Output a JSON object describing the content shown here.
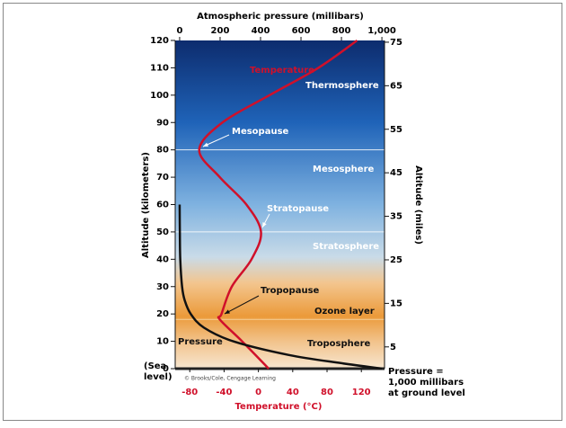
{
  "chart_data": {
    "type": "line",
    "title": "Atmospheric pressure (millibars)",
    "y_label": "Altitude (kilometers)",
    "y2_label": "Altitude (miles)",
    "x_label": "Temperature (°C)",
    "ylim": [
      0,
      120
    ],
    "yticks": [
      0,
      10,
      20,
      30,
      40,
      50,
      60,
      70,
      80,
      90,
      100,
      110,
      120
    ],
    "y2lim": [
      0,
      75.4
    ],
    "y2ticks": [
      5,
      15,
      25,
      35,
      45,
      55,
      65,
      75
    ],
    "xlim": [
      -97,
      147
    ],
    "xticks": [
      -80,
      -40,
      0,
      40,
      80,
      120
    ],
    "x2lim": [
      -22,
      1013
    ],
    "x2ticks": [
      0,
      200,
      400,
      600,
      800,
      {
        "value": 1000,
        "label": "1,000"
      }
    ],
    "series": [
      {
        "name": "Temperature",
        "color": "#d0102a",
        "x": [
          12,
          -19,
          -45,
          -43,
          -31,
          -8,
          3,
          -14,
          -45,
          -69,
          -42,
          13,
          70,
          115
        ],
        "values": [
          0,
          10,
          18,
          20,
          30,
          40,
          50,
          60,
          70,
          80,
          90,
          100,
          110,
          120
        ]
      },
      {
        "name": "Pressure",
        "color": "#111111",
        "axis": "x2",
        "x": [
          1000,
          800,
          540,
          265,
          120,
          55,
          25,
          12,
          3,
          1,
          0
        ],
        "values": [
          0,
          2,
          5,
          10,
          15,
          20,
          25,
          30,
          40,
          50,
          60
        ]
      }
    ],
    "boundaries": [
      80,
      50,
      18
    ],
    "layers": [
      "Thermosphere",
      "Mesopause",
      "Mesosphere",
      "Stratopause",
      "Stratosphere",
      "Tropopause",
      "Ozone layer",
      "Troposphere"
    ],
    "sea_level": [
      "(Sea",
      "level)"
    ],
    "ground_note": [
      "Pressure =",
      "1,000 millibars",
      "at ground level"
    ],
    "credit": "© Brooks/Cole, Cengage Learning"
  }
}
